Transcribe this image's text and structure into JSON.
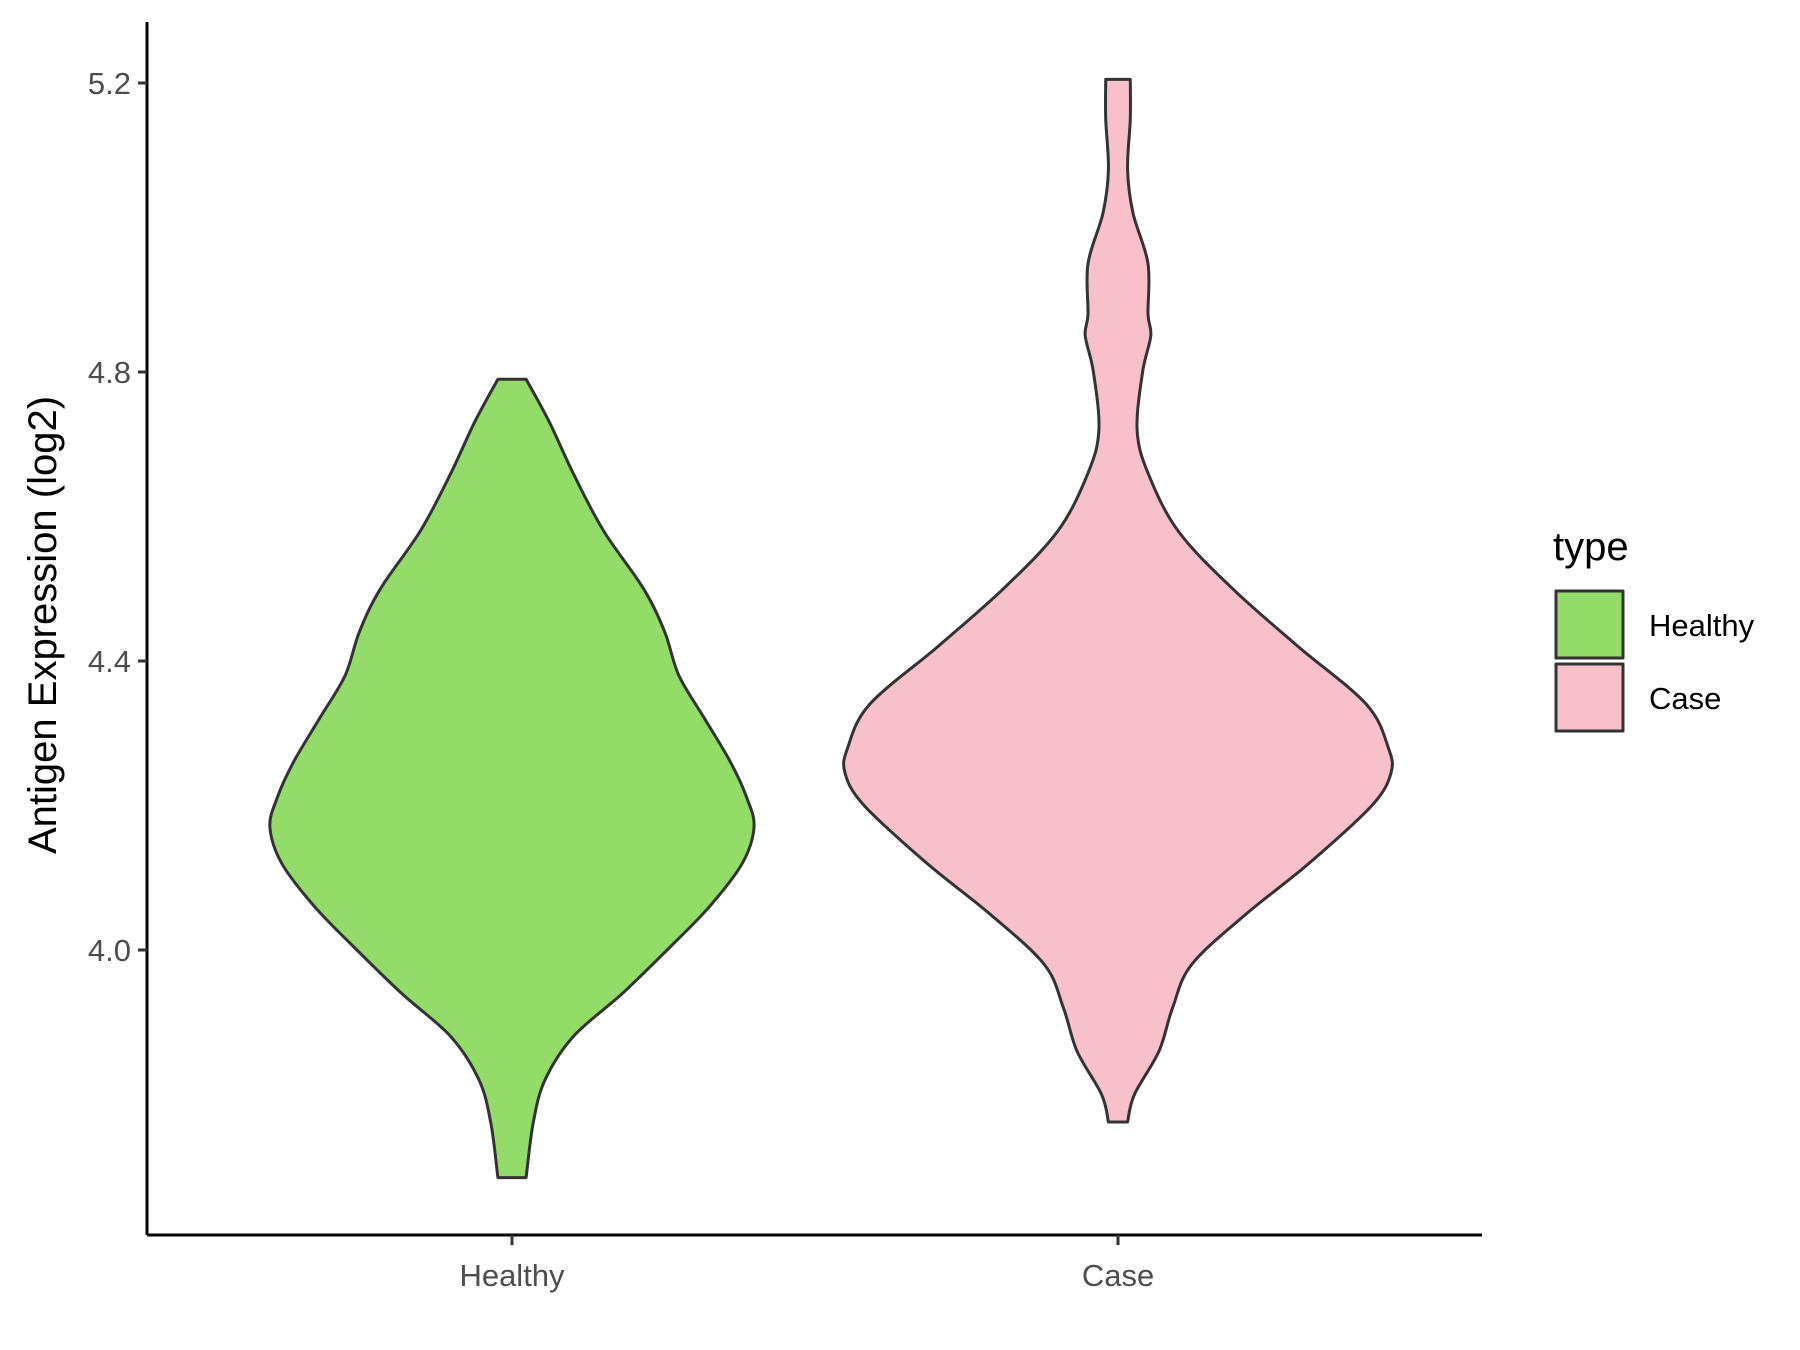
{
  "chart_data": {
    "type": "violin",
    "xlabel": "",
    "ylabel": "Antigen Expression (log2)",
    "ylim": [
      3.61,
      5.28
    ],
    "yticks": [
      "4.0",
      "4.4",
      "4.8",
      "5.2"
    ],
    "categories": [
      "Healthy",
      "Case"
    ],
    "grid": false,
    "legend": {
      "title": "type",
      "position": "right",
      "entries": [
        "Healthy",
        "Case"
      ]
    },
    "colors": {
      "Healthy": "#93dc6a",
      "Case": "#f7c0cb",
      "outline": "#333333"
    },
    "series": [
      {
        "name": "Healthy",
        "min": 3.685,
        "max": 4.79,
        "profile": [
          [
            4.79,
            0.06
          ],
          [
            4.73,
            0.16
          ],
          [
            4.66,
            0.26
          ],
          [
            4.58,
            0.39
          ],
          [
            4.5,
            0.56
          ],
          [
            4.44,
            0.65
          ],
          [
            4.38,
            0.71
          ],
          [
            4.32,
            0.82
          ],
          [
            4.26,
            0.93
          ],
          [
            4.21,
            1.0
          ],
          [
            4.17,
            1.03
          ],
          [
            4.12,
            0.98
          ],
          [
            4.06,
            0.84
          ],
          [
            4.0,
            0.66
          ],
          [
            3.94,
            0.47
          ],
          [
            3.88,
            0.26
          ],
          [
            3.82,
            0.14
          ],
          [
            3.76,
            0.09
          ],
          [
            3.685,
            0.06
          ]
        ]
      },
      {
        "name": "Case",
        "min": 3.762,
        "max": 5.205,
        "profile": [
          [
            5.205,
            0.045
          ],
          [
            5.15,
            0.045
          ],
          [
            5.08,
            0.035
          ],
          [
            5.02,
            0.055
          ],
          [
            4.95,
            0.11
          ],
          [
            4.88,
            0.11
          ],
          [
            4.85,
            0.12
          ],
          [
            4.8,
            0.09
          ],
          [
            4.72,
            0.07
          ],
          [
            4.66,
            0.11
          ],
          [
            4.58,
            0.22
          ],
          [
            4.5,
            0.42
          ],
          [
            4.42,
            0.66
          ],
          [
            4.34,
            0.91
          ],
          [
            4.28,
            0.99
          ],
          [
            4.245,
            1.0
          ],
          [
            4.2,
            0.93
          ],
          [
            4.12,
            0.7
          ],
          [
            4.05,
            0.47
          ],
          [
            3.98,
            0.27
          ],
          [
            3.92,
            0.2
          ],
          [
            3.86,
            0.15
          ],
          [
            3.8,
            0.06
          ],
          [
            3.762,
            0.035
          ]
        ]
      }
    ]
  }
}
